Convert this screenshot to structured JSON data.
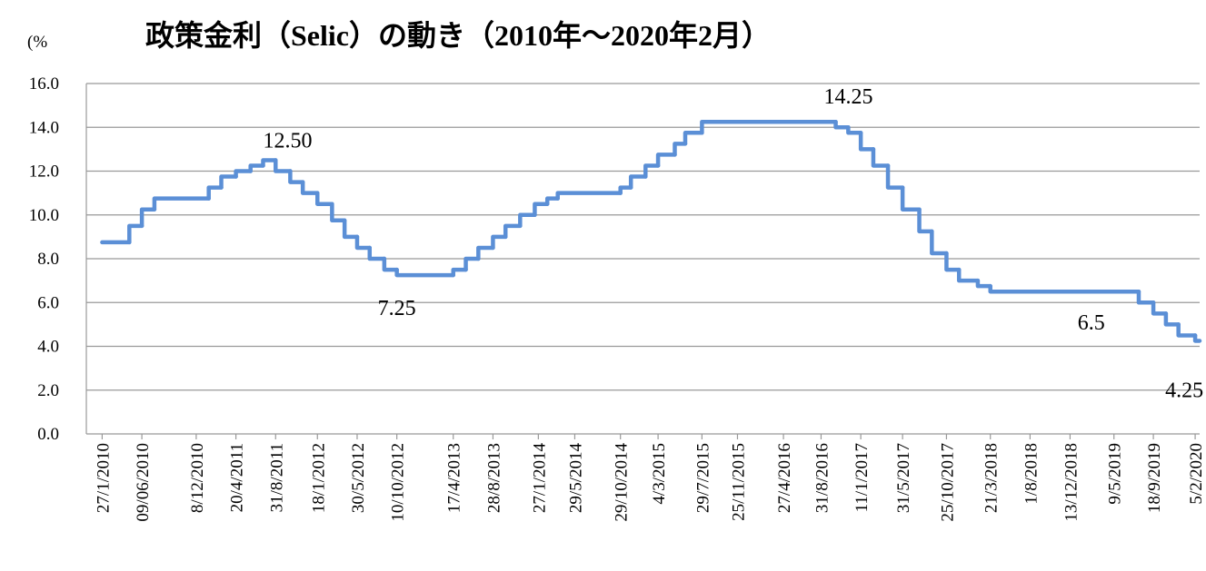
{
  "chart_data": {
    "type": "line",
    "title": "政策金利（Selic）の動き（2010年～2020年2月）",
    "y_label": "(%",
    "series": [
      {
        "name": "Selic",
        "color": "#5b8fd6",
        "x": [
          "2010-01-27",
          "2010-04-28",
          "2010-06-09",
          "2010-07-21",
          "2011-01-19",
          "2011-03-02",
          "2011-04-20",
          "2011-06-08",
          "2011-07-20",
          "2011-08-31",
          "2011-10-19",
          "2011-11-30",
          "2012-01-18",
          "2012-03-07",
          "2012-04-18",
          "2012-05-30",
          "2012-07-11",
          "2012-08-29",
          "2012-10-10",
          "2013-04-17",
          "2013-05-29",
          "2013-07-10",
          "2013-08-28",
          "2013-10-09",
          "2013-11-27",
          "2014-01-15",
          "2014-02-26",
          "2014-04-02",
          "2014-10-29",
          "2014-12-03",
          "2015-01-21",
          "2015-03-04",
          "2015-04-29",
          "2015-06-03",
          "2015-07-29",
          "2016-10-19",
          "2016-11-30",
          "2017-01-11",
          "2017-02-22",
          "2017-04-12",
          "2017-05-31",
          "2017-07-26",
          "2017-09-06",
          "2017-10-25",
          "2017-12-06",
          "2018-02-07",
          "2018-03-21",
          "2019-07-31",
          "2019-09-18",
          "2019-10-30",
          "2019-12-11",
          "2020-02-05"
        ],
        "values": [
          8.75,
          9.5,
          10.25,
          10.75,
          11.25,
          11.75,
          12,
          12.25,
          12.5,
          12,
          11.5,
          11,
          10.5,
          9.75,
          9,
          8.5,
          8,
          7.5,
          7.25,
          7.5,
          8,
          8.5,
          9,
          9.5,
          10,
          10.5,
          10.75,
          11,
          11.25,
          11.75,
          12.25,
          12.75,
          13.25,
          13.75,
          14.25,
          14,
          13.75,
          13,
          12.25,
          11.25,
          10.25,
          9.25,
          8.25,
          7.5,
          7,
          6.75,
          6.5,
          6,
          5.5,
          5,
          4.5,
          4.25
        ]
      }
    ],
    "annotations": [
      {
        "label": "12.50",
        "x": "2011-07-20",
        "value": 12.5
      },
      {
        "label": "7.25",
        "x": "2012-10-10",
        "value": 7.25
      },
      {
        "label": "14.25",
        "x": "2016-08-31",
        "value": 14.25
      },
      {
        "label": "6.5",
        "x": "2019-05-09",
        "value": 6.5
      },
      {
        "label": "4.25",
        "x": "2020-02-05",
        "value": 4.25
      }
    ],
    "xlim": [
      "2009-12-05",
      "2020-02-20"
    ],
    "xticks": [
      {
        "value": "2010-01-27",
        "label": "27/1/2010"
      },
      {
        "value": "2010-06-09",
        "label": "09/06/2010"
      },
      {
        "value": "2010-12-08",
        "label": "8/12/2010"
      },
      {
        "value": "2011-04-20",
        "label": "20/4/2011"
      },
      {
        "value": "2011-08-31",
        "label": "31/8/2011"
      },
      {
        "value": "2012-01-18",
        "label": "18/1/2012"
      },
      {
        "value": "2012-05-30",
        "label": "30/5/2012"
      },
      {
        "value": "2012-10-10",
        "label": "10/10/2012"
      },
      {
        "value": "2013-04-17",
        "label": "17/4/2013"
      },
      {
        "value": "2013-08-28",
        "label": "28/8/2013"
      },
      {
        "value": "2014-01-27",
        "label": "27/1/2014"
      },
      {
        "value": "2014-05-29",
        "label": "29/5/2014"
      },
      {
        "value": "2014-10-29",
        "label": "29/10/2014"
      },
      {
        "value": "2015-03-04",
        "label": "4/3/2015"
      },
      {
        "value": "2015-07-29",
        "label": "29/7/2015"
      },
      {
        "value": "2015-11-25",
        "label": "25/11/2015"
      },
      {
        "value": "2016-04-27",
        "label": "27/4/2016"
      },
      {
        "value": "2016-08-31",
        "label": "31/8/2016"
      },
      {
        "value": "2017-01-11",
        "label": "11/1/2017"
      },
      {
        "value": "2017-05-31",
        "label": "31/5/2017"
      },
      {
        "value": "2017-10-25",
        "label": "25/10/2017"
      },
      {
        "value": "2018-03-21",
        "label": "21/3/2018"
      },
      {
        "value": "2018-08-01",
        "label": "1/8/2018"
      },
      {
        "value": "2018-12-13",
        "label": "13/12/2018"
      },
      {
        "value": "2019-05-09",
        "label": "9/5/2019"
      },
      {
        "value": "2019-09-18",
        "label": "18/9/2019"
      },
      {
        "value": "2020-02-05",
        "label": "5/2/2020"
      }
    ],
    "ylim": [
      0,
      16
    ],
    "yticks": [
      {
        "value": 0,
        "label": "0.0"
      },
      {
        "value": 2,
        "label": "2.0"
      },
      {
        "value": 4,
        "label": "4.0"
      },
      {
        "value": 6,
        "label": "6.0"
      },
      {
        "value": 8,
        "label": "8.0"
      },
      {
        "value": 10,
        "label": "10.0"
      },
      {
        "value": 12,
        "label": "12.0"
      },
      {
        "value": 14,
        "label": "14.0"
      },
      {
        "value": 16,
        "label": "16.0"
      }
    ],
    "grid": true
  }
}
